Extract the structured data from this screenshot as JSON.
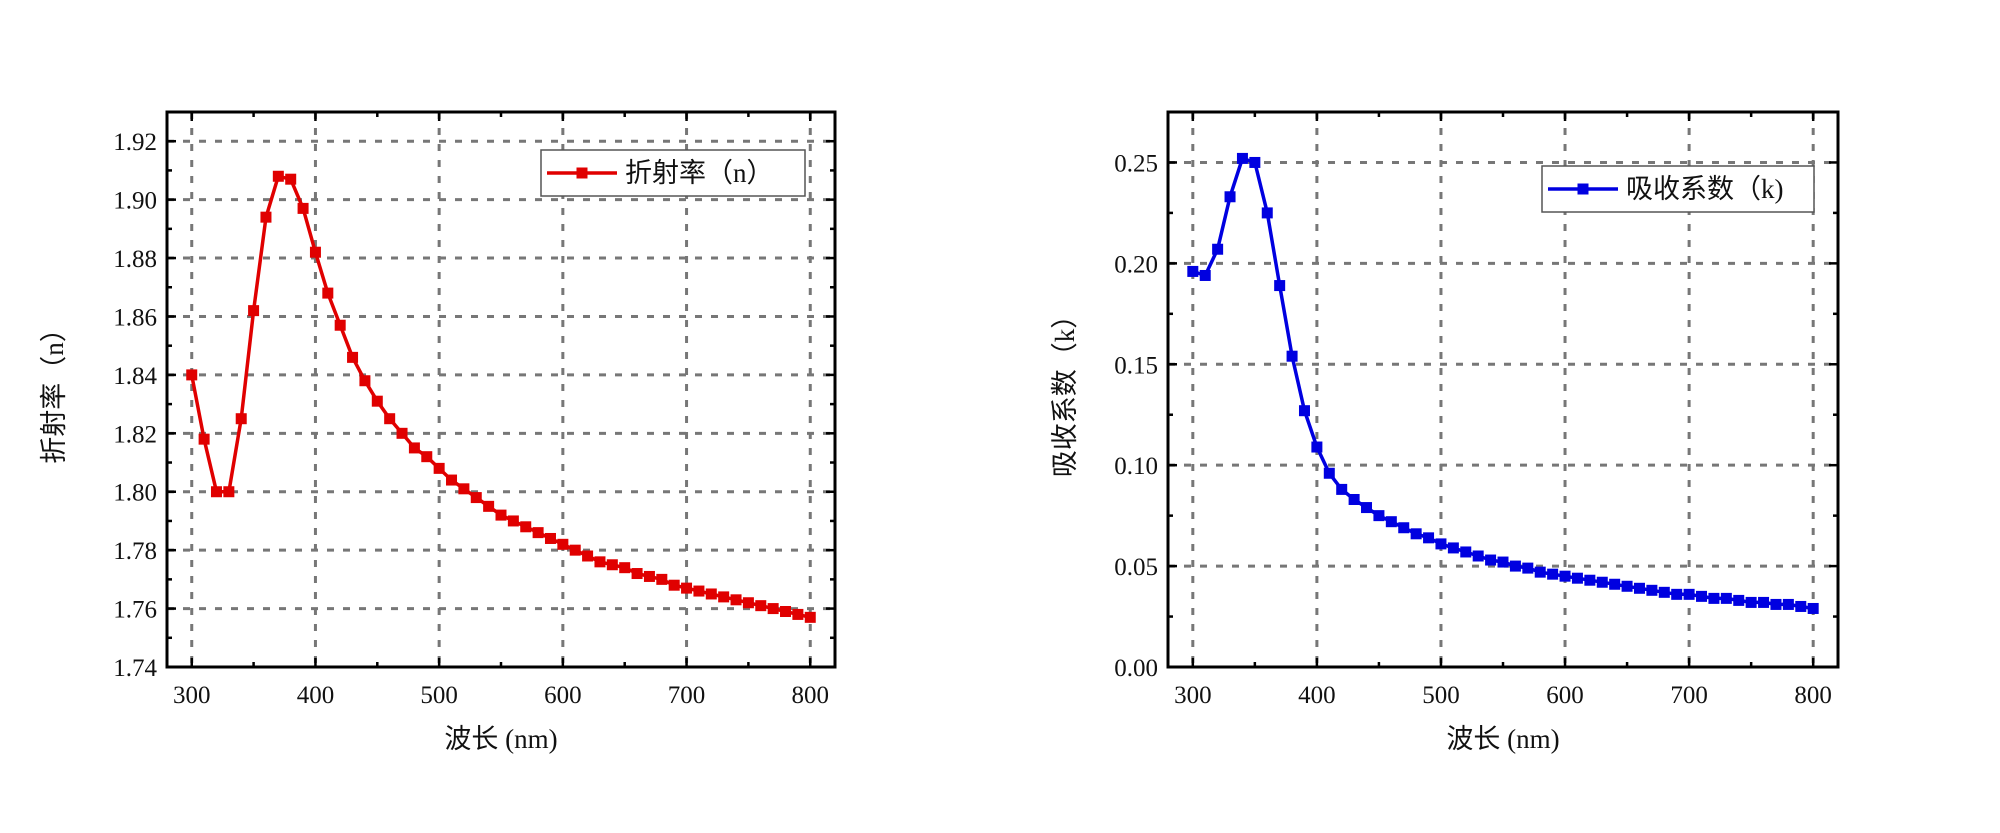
{
  "chart_data": [
    {
      "type": "line",
      "title": "",
      "xlabel": "波长 (nm)",
      "ylabel": "折射率（n）",
      "xlim": [
        280,
        820
      ],
      "ylim": [
        1.74,
        1.93
      ],
      "xticks": [
        300,
        400,
        500,
        600,
        700,
        800
      ],
      "yticks": [
        1.74,
        1.76,
        1.78,
        1.8,
        1.82,
        1.84,
        1.86,
        1.88,
        1.9,
        1.92
      ],
      "ytick_labels": [
        "1.74",
        "1.76",
        "1.78",
        "1.80",
        "1.82",
        "1.84",
        "1.86",
        "1.88",
        "1.90",
        "1.92"
      ],
      "grid": true,
      "legend_position": "top-right",
      "series": [
        {
          "name": "折射率（n）",
          "color": "#e00000",
          "marker": "square",
          "x": [
            300,
            310,
            320,
            330,
            340,
            350,
            360,
            370,
            380,
            390,
            400,
            410,
            420,
            430,
            440,
            450,
            460,
            470,
            480,
            490,
            500,
            510,
            520,
            530,
            540,
            550,
            560,
            570,
            580,
            590,
            600,
            610,
            620,
            630,
            640,
            650,
            660,
            670,
            680,
            690,
            700,
            710,
            720,
            730,
            740,
            750,
            760,
            770,
            780,
            790,
            800
          ],
          "y": [
            1.84,
            1.818,
            1.8,
            1.8,
            1.825,
            1.862,
            1.894,
            1.908,
            1.907,
            1.897,
            1.882,
            1.868,
            1.857,
            1.846,
            1.838,
            1.831,
            1.825,
            1.82,
            1.815,
            1.812,
            1.808,
            1.804,
            1.801,
            1.798,
            1.795,
            1.792,
            1.79,
            1.788,
            1.786,
            1.784,
            1.782,
            1.78,
            1.778,
            1.776,
            1.775,
            1.774,
            1.772,
            1.771,
            1.77,
            1.768,
            1.767,
            1.766,
            1.765,
            1.764,
            1.763,
            1.762,
            1.761,
            1.76,
            1.759,
            1.758,
            1.757
          ]
        }
      ]
    },
    {
      "type": "line",
      "title": "",
      "xlabel": "波长 (nm)",
      "ylabel": "吸收系数（k）",
      "xlim": [
        280,
        820
      ],
      "ylim": [
        0.0,
        0.275
      ],
      "xticks": [
        300,
        400,
        500,
        600,
        700,
        800
      ],
      "yticks": [
        0.0,
        0.05,
        0.1,
        0.15,
        0.2,
        0.25
      ],
      "ytick_labels": [
        "0.00",
        "0.05",
        "0.10",
        "0.15",
        "0.20",
        "0.25"
      ],
      "grid": true,
      "legend_position": "top-right",
      "series": [
        {
          "name": "吸收系数（k)",
          "color": "#0000e0",
          "marker": "square",
          "x": [
            300,
            310,
            320,
            330,
            340,
            350,
            360,
            370,
            380,
            390,
            400,
            410,
            420,
            430,
            440,
            450,
            460,
            470,
            480,
            490,
            500,
            510,
            520,
            530,
            540,
            550,
            560,
            570,
            580,
            590,
            600,
            610,
            620,
            630,
            640,
            650,
            660,
            670,
            680,
            690,
            700,
            710,
            720,
            730,
            740,
            750,
            760,
            770,
            780,
            790,
            800
          ],
          "y": [
            0.196,
            0.194,
            0.207,
            0.233,
            0.252,
            0.25,
            0.225,
            0.189,
            0.154,
            0.127,
            0.109,
            0.096,
            0.088,
            0.083,
            0.079,
            0.075,
            0.072,
            0.069,
            0.066,
            0.064,
            0.061,
            0.059,
            0.057,
            0.055,
            0.053,
            0.052,
            0.05,
            0.049,
            0.047,
            0.046,
            0.045,
            0.044,
            0.043,
            0.042,
            0.041,
            0.04,
            0.039,
            0.038,
            0.037,
            0.036,
            0.036,
            0.035,
            0.034,
            0.034,
            0.033,
            0.032,
            0.032,
            0.031,
            0.031,
            0.03,
            0.029
          ]
        }
      ]
    }
  ]
}
